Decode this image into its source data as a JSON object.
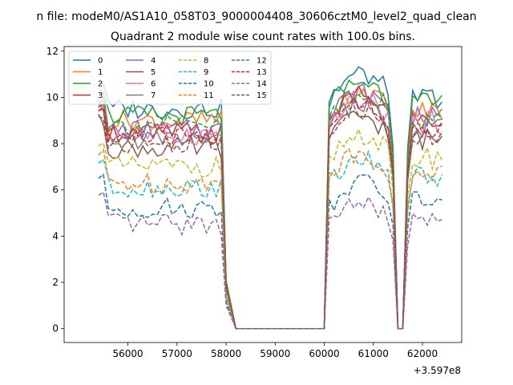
{
  "chart_data": {
    "type": "line",
    "suptitle": "n file: modeM0/AS1A10_058T03_9000004408_30606cztM0_level2_quad_clean",
    "title": "Quadrant 2 module wise count rates with 100.0s bins.",
    "xlabel": "",
    "ylabel": "",
    "x_offset_label": "+3.597e8",
    "xlim": [
      54700,
      62800
    ],
    "ylim": [
      -0.6,
      12.2
    ],
    "x_ticks": [
      56000,
      57000,
      58000,
      59000,
      60000,
      61000,
      62000
    ],
    "x_tick_labels": [
      "56000",
      "57000",
      "58000",
      "59000",
      "60000",
      "61000",
      "62000"
    ],
    "y_ticks": [
      0,
      2,
      4,
      6,
      8,
      10,
      12
    ],
    "y_tick_labels": [
      "0",
      "2",
      "4",
      "6",
      "8",
      "10",
      "12"
    ],
    "grid": false,
    "legend_position": "top-left",
    "legend_columns": 4,
    "x_segments": [
      [
        55400,
        57900,
        100
      ],
      [
        58000,
        60000,
        100
      ],
      [
        60100,
        61400,
        100
      ],
      [
        61500,
        61600,
        100
      ],
      [
        61700,
        62400,
        100
      ]
    ],
    "series": [
      {
        "name": "0",
        "color": "#1f77b4",
        "dash": "solid",
        "base": [
          9.5,
          10.9,
          0,
          11.0,
          0,
          10.0
        ]
      },
      {
        "name": "1",
        "color": "#ff7f0e",
        "dash": "solid",
        "base": [
          9.0,
          10.2,
          0,
          10.2,
          0,
          9.4
        ]
      },
      {
        "name": "2",
        "color": "#2ca02c",
        "dash": "solid",
        "base": [
          9.2,
          10.6,
          0,
          10.5,
          0,
          9.7
        ]
      },
      {
        "name": "3",
        "color": "#d62728",
        "dash": "solid",
        "base": [
          8.5,
          10.0,
          0,
          9.6,
          0,
          9.0
        ]
      },
      {
        "name": "4",
        "color": "#9467bd",
        "dash": "solid",
        "base": [
          8.6,
          10.1,
          0,
          9.7,
          0,
          9.1
        ]
      },
      {
        "name": "5",
        "color": "#8c564b",
        "dash": "solid",
        "base": [
          7.8,
          9.1,
          0,
          8.8,
          0,
          8.2
        ]
      },
      {
        "name": "6",
        "color": "#e377c2",
        "dash": "solid",
        "base": [
          8.4,
          9.8,
          0,
          9.5,
          0,
          8.9
        ]
      },
      {
        "name": "7",
        "color": "#7f7f7f",
        "dash": "solid",
        "base": [
          8.2,
          9.6,
          0,
          9.2,
          0,
          8.6
        ]
      },
      {
        "name": "8",
        "color": "#bcbd22",
        "dash": "dashed",
        "base": [
          7.0,
          8.3,
          0,
          8.0,
          0,
          7.4
        ]
      },
      {
        "name": "9",
        "color": "#17becf",
        "dash": "dashed",
        "base": [
          6.1,
          7.2,
          0,
          7.0,
          0,
          6.5
        ]
      },
      {
        "name": "10",
        "color": "#1f77b4",
        "dash": "dashed",
        "base": [
          5.2,
          6.2,
          0,
          6.0,
          0,
          5.6
        ]
      },
      {
        "name": "11",
        "color": "#ff7f0e",
        "dash": "dashed",
        "base": [
          6.3,
          7.5,
          0,
          7.2,
          0,
          6.8
        ]
      },
      {
        "name": "12",
        "color": "#2ca02c",
        "dash": "dashed",
        "base": [
          8.8,
          10.2,
          0,
          10.0,
          0,
          9.1
        ]
      },
      {
        "name": "13",
        "color": "#d62728",
        "dash": "dashed",
        "base": [
          8.3,
          9.7,
          0,
          9.3,
          0,
          8.7
        ]
      },
      {
        "name": "14",
        "color": "#9467bd",
        "dash": "dashed",
        "base": [
          4.5,
          5.3,
          0,
          5.0,
          0,
          4.6
        ]
      },
      {
        "name": "15",
        "color": "#8c564b",
        "dash": "dashed",
        "base": [
          8.0,
          9.3,
          0,
          9.0,
          0,
          8.4
        ]
      }
    ]
  }
}
